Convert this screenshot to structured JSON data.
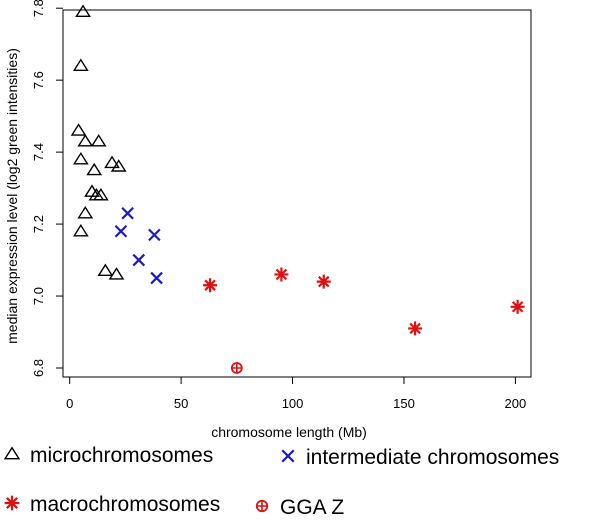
{
  "chart_data": {
    "type": "scatter",
    "xlabel": "chromosome length (Mb)",
    "ylabel": "median expression level (log2 green intensities)",
    "xlim": [
      -3,
      207
    ],
    "ylim": [
      6.8,
      7.82
    ],
    "xticks": [
      0,
      50,
      100,
      150,
      200
    ],
    "yticks": [
      6.8,
      7.0,
      7.2,
      7.4,
      7.6,
      7.8
    ],
    "xtick_labels": [
      "0",
      "50",
      "100",
      "150",
      "200"
    ],
    "ytick_labels": [
      "6.8",
      "7.0",
      "7.2",
      "7.4",
      "7.6",
      "7.8"
    ],
    "grid": false,
    "legend_position": "bottom",
    "series": [
      {
        "name": "microchromosomes",
        "marker": "triangle",
        "color": "#000000",
        "points": [
          [
            6,
            7.79
          ],
          [
            5,
            7.64
          ],
          [
            4,
            7.46
          ],
          [
            7,
            7.43
          ],
          [
            13,
            7.43
          ],
          [
            5,
            7.38
          ],
          [
            19,
            7.37
          ],
          [
            22,
            7.36
          ],
          [
            11,
            7.35
          ],
          [
            10,
            7.29
          ],
          [
            12,
            7.28
          ],
          [
            14,
            7.28
          ],
          [
            7,
            7.23
          ],
          [
            5,
            7.18
          ],
          [
            16,
            7.07
          ],
          [
            21,
            7.06
          ]
        ]
      },
      {
        "name": "intermediate chromosomes",
        "marker": "x",
        "color": "#1a1ac8",
        "points": [
          [
            26,
            7.23
          ],
          [
            23,
            7.18
          ],
          [
            38,
            7.17
          ],
          [
            31,
            7.1
          ],
          [
            39,
            7.05
          ]
        ]
      },
      {
        "name": "macrochromosomes",
        "marker": "asterisk",
        "color": "#e01010",
        "points": [
          [
            63,
            7.03
          ],
          [
            95,
            7.06
          ],
          [
            114,
            7.04
          ],
          [
            155,
            6.91
          ],
          [
            201,
            6.97
          ]
        ]
      },
      {
        "name": "GGA Z",
        "marker": "circled-plus",
        "color": "#e01010",
        "points": [
          [
            75,
            6.8
          ]
        ]
      }
    ]
  }
}
